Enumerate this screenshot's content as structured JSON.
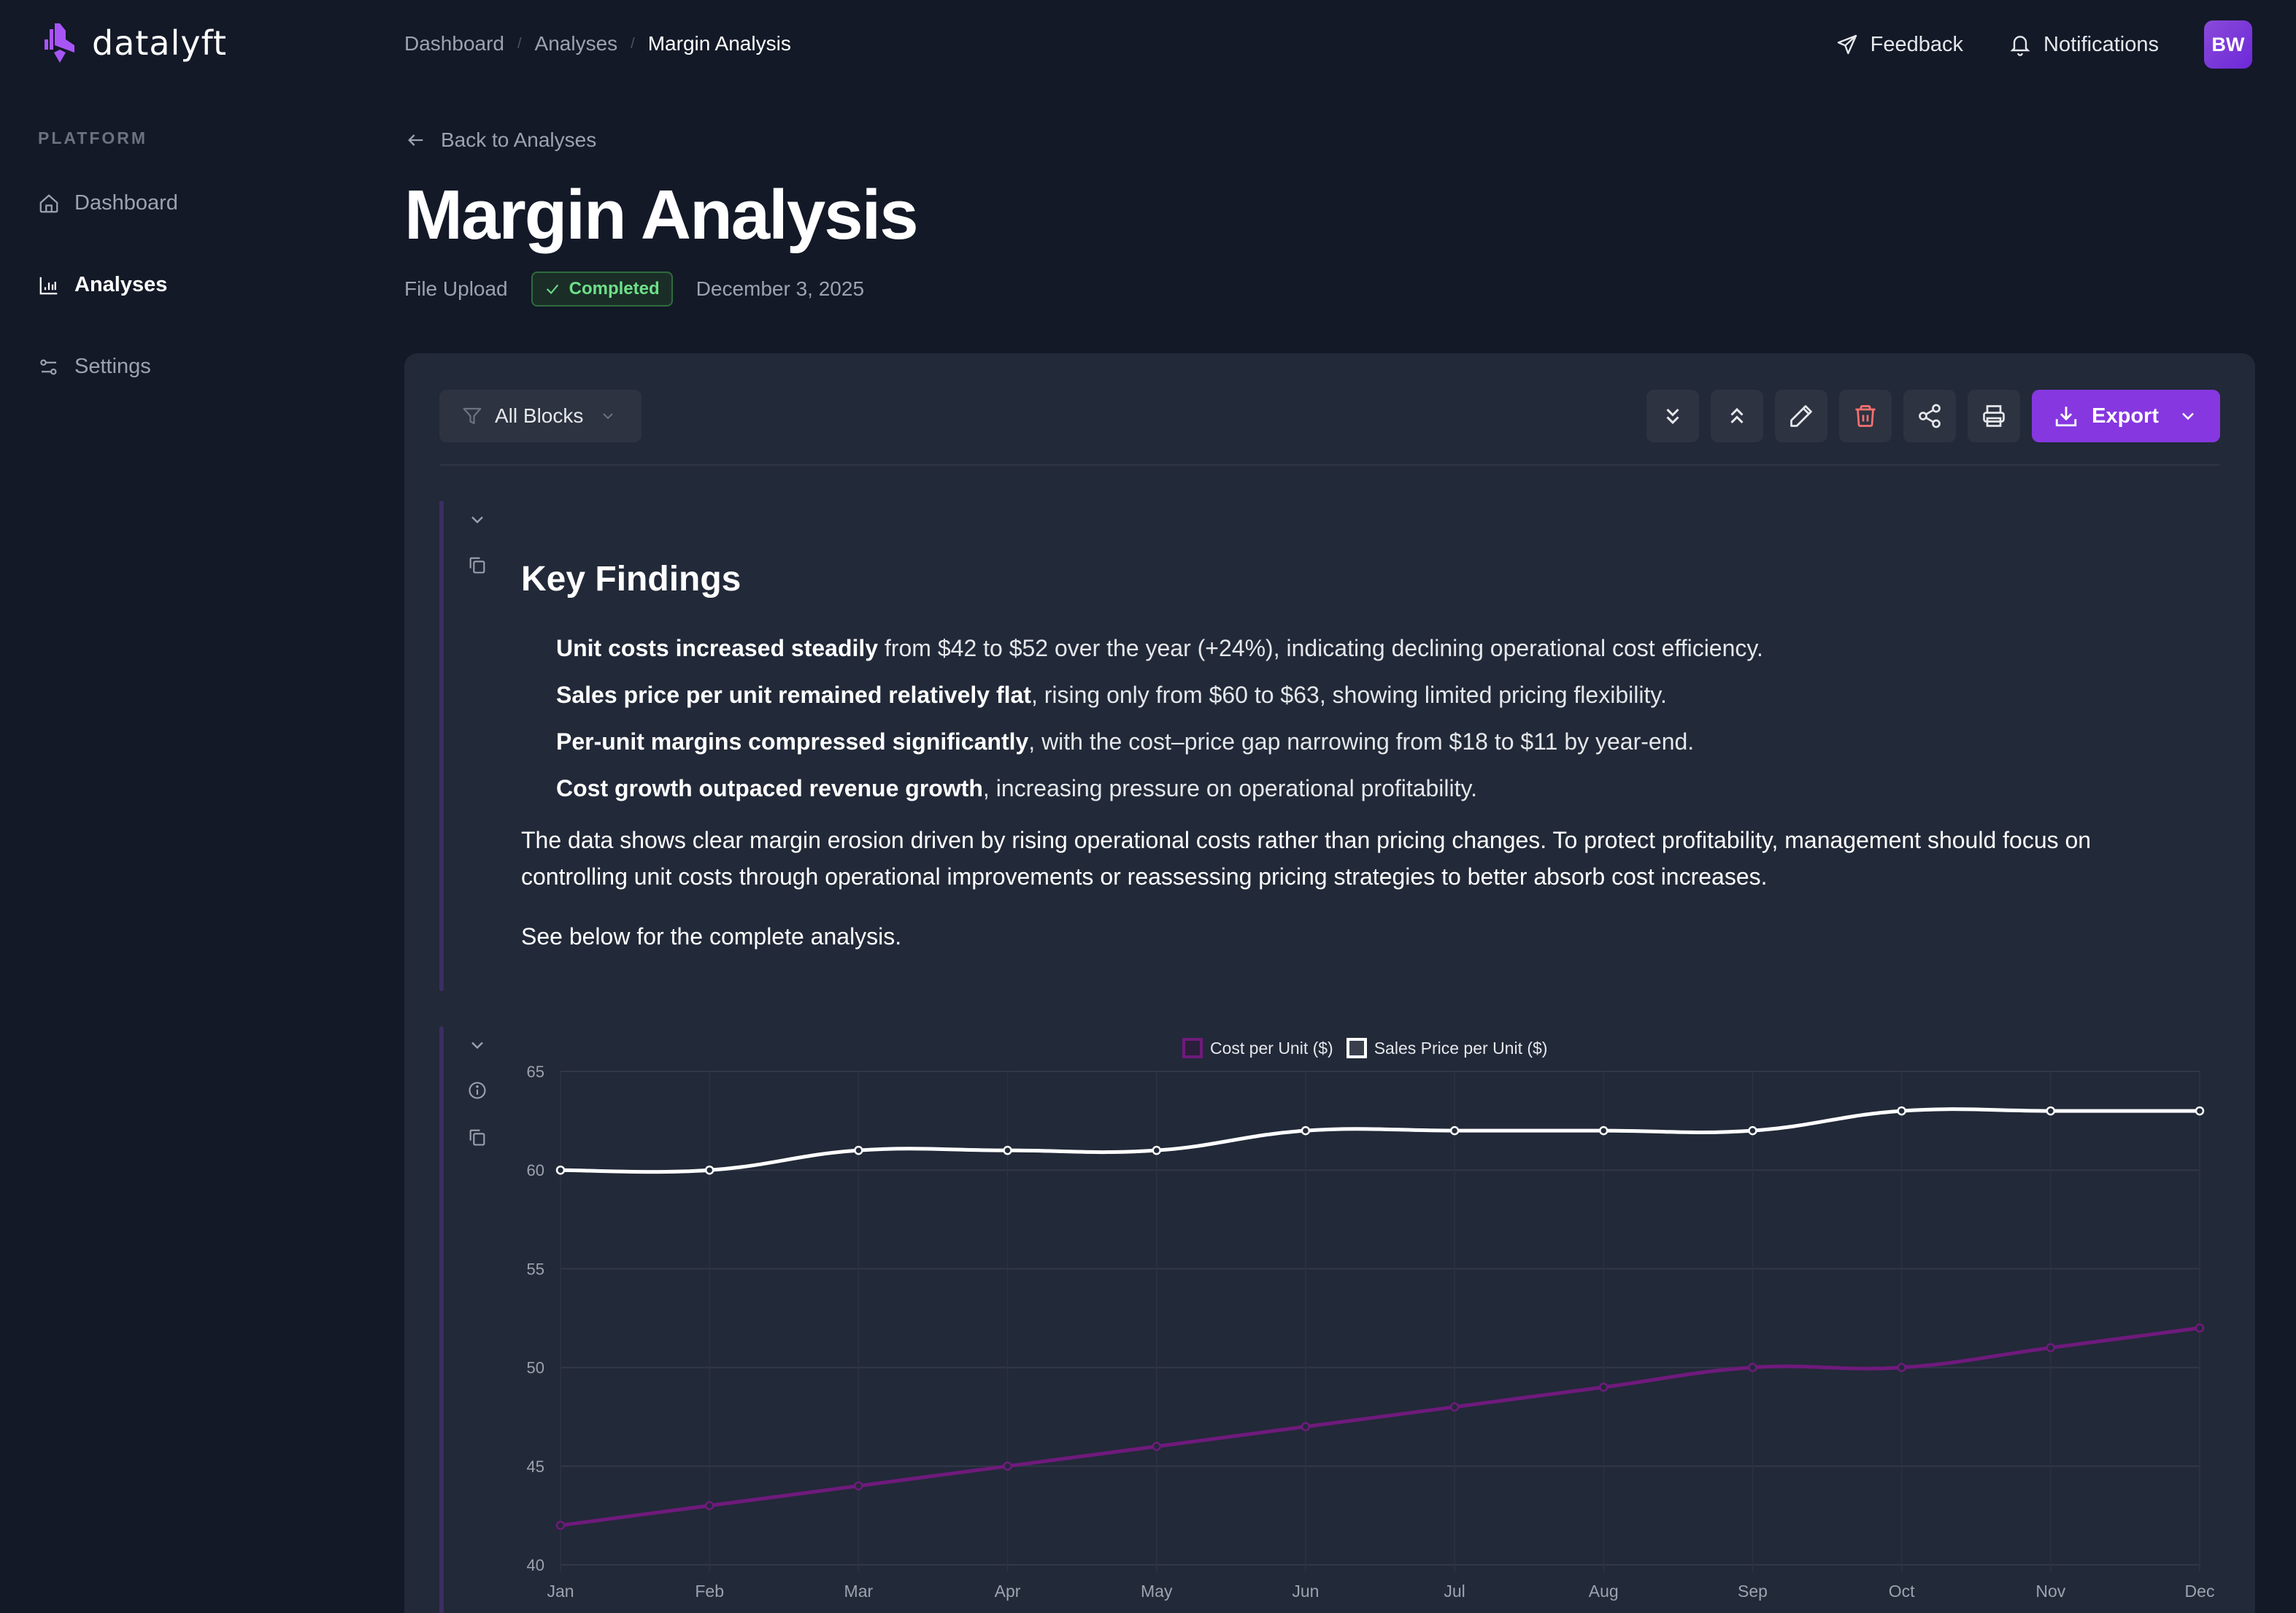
{
  "brand": {
    "name": "datalyft",
    "accent": "#8637e0"
  },
  "sidebar": {
    "section_label": "PLATFORM",
    "items": [
      {
        "label": "Dashboard",
        "icon": "home-icon",
        "active": false
      },
      {
        "label": "Analyses",
        "icon": "bar-chart-icon",
        "active": true
      },
      {
        "label": "Settings",
        "icon": "sliders-icon",
        "active": false
      }
    ]
  },
  "topbar": {
    "breadcrumb": [
      "Dashboard",
      "Analyses",
      "Margin Analysis"
    ],
    "feedback_label": "Feedback",
    "notifications_label": "Notifications",
    "avatar_initials": "BW"
  },
  "header": {
    "back_label": "Back to Analyses",
    "title": "Margin Analysis",
    "source": "File Upload",
    "status": "Completed",
    "status_color": "#6ee08a",
    "date": "December 3, 2025"
  },
  "toolbar": {
    "filter_label": "All Blocks",
    "export_label": "Export",
    "icons": [
      "expand-all-icon",
      "collapse-all-icon",
      "edit-icon",
      "delete-icon",
      "share-icon",
      "print-icon"
    ]
  },
  "findings": {
    "title": "Key Findings",
    "bullets": [
      {
        "bold": "Unit costs increased steadily",
        "rest": " from $42 to $52 over the year (+24%), indicating declining operational cost efficiency."
      },
      {
        "bold": "Sales price per unit remained relatively flat",
        "rest": ", rising only from $60 to $63, showing limited pricing flexibility."
      },
      {
        "bold": "Per-unit margins compressed significantly",
        "rest": ", with the cost–price gap narrowing from $18 to $11 by year-end."
      },
      {
        "bold": "Cost growth outpaced revenue growth",
        "rest": ", increasing pressure on operational profitability."
      }
    ],
    "summary": "The data shows clear margin erosion driven by rising operational costs rather than pricing changes. To protect profitability, management should focus on controlling unit costs through operational improvements or reassessing pricing strategies to better absorb cost increases.",
    "see_below": "See below for the complete analysis."
  },
  "chart_data": {
    "type": "line",
    "title": "",
    "xlabel": "",
    "ylabel": "",
    "categories": [
      "Jan",
      "Feb",
      "Mar",
      "Apr",
      "May",
      "Jun",
      "Jul",
      "Aug",
      "Sep",
      "Oct",
      "Nov",
      "Dec"
    ],
    "series": [
      {
        "name": "Cost per Unit ($)",
        "color": "#6f1a7c",
        "values": [
          42,
          43,
          44,
          45,
          46,
          47,
          48,
          49,
          50,
          50,
          51,
          52
        ]
      },
      {
        "name": "Sales Price per Unit ($)",
        "color": "#ffffff",
        "values": [
          60,
          60,
          61,
          61,
          61,
          62,
          62,
          62,
          62,
          63,
          63,
          63
        ]
      }
    ],
    "yticks": [
      40,
      45,
      50,
      55,
      60,
      65
    ],
    "ylim": [
      40,
      65
    ],
    "grid": true,
    "legend_position": "top"
  }
}
